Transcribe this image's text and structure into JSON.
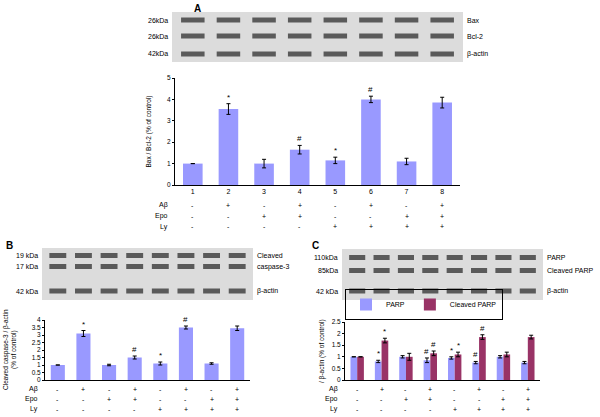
{
  "chart_data": [
    {
      "panel_label": "A",
      "type": "bar",
      "color": "#9999ff",
      "blot": [
        {
          "sizes": [
            "26kDa"
          ],
          "labels": [
            "Bax"
          ]
        },
        {
          "sizes": [
            "26kDa"
          ],
          "labels": [
            "Bcl-2"
          ]
        },
        {
          "sizes": [
            "42kDa"
          ],
          "labels": [
            "β-actin"
          ]
        }
      ],
      "y_label": [
        "Bax / Bcl-2 (% of control)"
      ],
      "categories": [
        "1",
        "2",
        "3",
        "4",
        "5",
        "6",
        "7",
        "8"
      ],
      "values": [
        1,
        3.55,
        1.0,
        1.65,
        1.15,
        4.0,
        1.1,
        3.85
      ],
      "errors": [
        0,
        0.25,
        0.2,
        0.2,
        0.15,
        0.15,
        0.15,
        0.25
      ],
      "significance": [
        null,
        "*",
        null,
        "#",
        "*",
        "#",
        null,
        null
      ],
      "ylim": [
        0,
        5
      ],
      "yticks": [
        0,
        1,
        2,
        3,
        4,
        5
      ],
      "grid": false,
      "treatments": {
        "labels": [
          "Aβ",
          "Epo",
          "Ly"
        ],
        "rows": [
          [
            "-",
            "+",
            "-",
            "+",
            "-",
            "+",
            "-",
            "+"
          ],
          [
            "-",
            "-",
            "+",
            "+",
            "-",
            "-",
            "+",
            "+"
          ],
          [
            "-",
            "-",
            "-",
            "-",
            "+",
            "+",
            "+",
            "+"
          ]
        ]
      }
    },
    {
      "panel_label": "B",
      "type": "bar",
      "color": "#9999ff",
      "blot": [
        {
          "sizes": [
            "19 kDa",
            "17 kDa"
          ],
          "labels": [
            "Cleaved",
            "caspase-3"
          ]
        },
        {
          "sizes": [
            "42 kDa"
          ],
          "labels": [
            "β-actin"
          ]
        }
      ],
      "y_label": [
        "Cleaved caspase-3 / β-actin",
        "(% of control)"
      ],
      "categories": [
        null,
        null,
        null,
        null,
        null,
        null,
        null,
        null
      ],
      "values": [
        1,
        3.1,
        1.0,
        1.5,
        1.1,
        3.5,
        1.1,
        3.45
      ],
      "errors": [
        0,
        0.2,
        0.05,
        0.1,
        0.1,
        0.1,
        0.05,
        0.15
      ],
      "significance": [
        null,
        "*",
        null,
        "#",
        "*",
        "#",
        null,
        null
      ],
      "ylim": [
        0,
        4
      ],
      "yticks": [
        0,
        0.5,
        1,
        1.5,
        2,
        2.5,
        3,
        3.5,
        4
      ],
      "grid": false,
      "tick_labels": "y",
      "treatments": {
        "labels": [
          "Aβ",
          "Epo",
          "Ly"
        ],
        "rows": [
          [
            "-",
            "+",
            "-",
            "+",
            "-",
            "+",
            "-",
            "+"
          ],
          [
            "-",
            "-",
            "+",
            "+",
            "-",
            "-",
            "+",
            "+"
          ],
          [
            "-",
            "-",
            "-",
            "-",
            "+",
            "+",
            "+",
            "+"
          ]
        ]
      }
    },
    {
      "panel_label": "C",
      "type": "bar",
      "blot": [
        {
          "sizes": [
            "110kDa",
            "85kDa"
          ],
          "labels": [
            "PARP",
            "Cleaved PARP"
          ]
        },
        {
          "sizes": [
            "42 kDa"
          ],
          "labels": [
            "β-actin"
          ]
        }
      ],
      "y_label": [
        "/ β-actin (% of control)"
      ],
      "categories": [
        null,
        null,
        null,
        null,
        null,
        null,
        null,
        null
      ],
      "series": [
        {
          "name": "PARP",
          "color": "#9999ff",
          "values": [
            1,
            0.8,
            1.0,
            0.85,
            0.95,
            0.75,
            1.0,
            0.75
          ],
          "errors": [
            0,
            0.05,
            0.05,
            0.1,
            0.05,
            0.05,
            0.05,
            0.05
          ],
          "significance": [
            null,
            "*",
            null,
            "#",
            "*",
            "#",
            null,
            null
          ]
        },
        {
          "name": "Cleaved PARP",
          "color": "#993366",
          "values": [
            1,
            1.7,
            1.0,
            1.15,
            1.1,
            1.85,
            1.1,
            1.85
          ],
          "errors": [
            0,
            0.1,
            0.15,
            0.1,
            0.1,
            0.1,
            0.1,
            0.08
          ],
          "significance": [
            null,
            "*",
            null,
            "#",
            "*",
            "#",
            null,
            null
          ]
        }
      ],
      "ylim": [
        0,
        2.5
      ],
      "yticks": [
        0,
        0.5,
        1,
        1.5,
        2,
        2.5
      ],
      "grid": false,
      "legend": "top left",
      "tick_labels": "y",
      "treatments": {
        "labels": [
          "Aβ",
          "Epo",
          "Ly"
        ],
        "rows": [
          [
            "-",
            "+",
            "-",
            "+",
            "-",
            "+",
            "-",
            "+"
          ],
          [
            "-",
            "-",
            "+",
            "+",
            "-",
            "-",
            "+",
            "+"
          ],
          [
            "-",
            "-",
            "-",
            "-",
            "+",
            "+",
            "+",
            "+"
          ]
        ]
      }
    }
  ]
}
